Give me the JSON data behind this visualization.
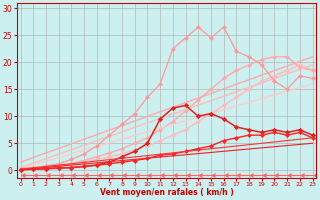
{
  "xlabel": "Vent moyen/en rafales ( km/h )",
  "bg_color": "#ccefef",
  "grid_color": "#aaaaaa",
  "x_ticks": [
    0,
    1,
    2,
    3,
    4,
    5,
    6,
    7,
    8,
    9,
    10,
    11,
    12,
    13,
    14,
    15,
    16,
    17,
    18,
    19,
    20,
    21,
    22,
    23
  ],
  "y_ticks": [
    0,
    5,
    10,
    15,
    20,
    25,
    30
  ],
  "xlim": [
    -0.3,
    23.3
  ],
  "ylim": [
    -1.5,
    31
  ],
  "lines": [
    {
      "x": [
        0,
        1,
        2,
        3,
        4,
        5,
        6,
        7,
        8,
        9,
        10,
        11,
        12,
        13,
        14,
        15,
        16,
        17,
        18,
        19,
        20,
        21,
        22,
        23
      ],
      "y": [
        0.2,
        0.3,
        0.5,
        0.8,
        1.1,
        1.5,
        2.0,
        2.5,
        3.0,
        3.8,
        4.5,
        5.5,
        6.5,
        7.5,
        9.0,
        10.5,
        12.0,
        13.5,
        15.0,
        16.5,
        17.5,
        18.5,
        19.5,
        18.5
      ],
      "color": "#ffbbbb",
      "lw": 1.0,
      "marker": "D",
      "ms": 2.0,
      "ls": "-"
    },
    {
      "x": [
        0,
        1,
        2,
        3,
        4,
        5,
        6,
        7,
        8,
        9,
        10,
        11,
        12,
        13,
        14,
        15,
        16,
        17,
        18,
        19,
        20,
        21,
        22,
        23
      ],
      "y": [
        0.2,
        0.3,
        0.5,
        0.8,
        1.2,
        1.8,
        2.5,
        3.2,
        4.0,
        5.0,
        6.0,
        7.5,
        9.0,
        11.0,
        13.0,
        15.0,
        17.0,
        18.5,
        19.5,
        20.5,
        21.0,
        21.0,
        19.0,
        18.5
      ],
      "color": "#ffaaaa",
      "lw": 1.0,
      "marker": "D",
      "ms": 2.0,
      "ls": "-"
    },
    {
      "x": [
        0,
        23
      ],
      "y": [
        0.3,
        16.0
      ],
      "color": "#ffcccc",
      "lw": 1.0,
      "marker": null,
      "ms": 0,
      "ls": "-"
    },
    {
      "x": [
        0,
        23
      ],
      "y": [
        0.5,
        19.5
      ],
      "color": "#ffbbbb",
      "lw": 1.0,
      "marker": null,
      "ms": 0,
      "ls": "-"
    },
    {
      "x": [
        0,
        23
      ],
      "y": [
        1.5,
        21.0
      ],
      "color": "#ffaaaa",
      "lw": 1.0,
      "marker": null,
      "ms": 0,
      "ls": "-"
    },
    {
      "x": [
        0,
        1,
        2,
        3,
        4,
        5,
        6,
        7,
        8,
        9,
        10,
        11,
        12,
        13,
        14,
        15,
        16,
        17,
        18,
        19,
        20,
        21,
        22,
        23
      ],
      "y": [
        0.3,
        0.5,
        0.8,
        1.2,
        2.0,
        3.0,
        4.5,
        6.5,
        8.5,
        10.5,
        13.5,
        16.0,
        22.5,
        24.5,
        26.5,
        24.5,
        26.5,
        22.0,
        21.0,
        19.5,
        16.5,
        15.0,
        17.5,
        17.0
      ],
      "color": "#ff9999",
      "lw": 0.9,
      "marker": "D",
      "ms": 2.0,
      "ls": "-"
    },
    {
      "x": [
        0,
        1,
        2,
        3,
        4,
        5,
        6,
        7,
        8,
        9,
        10,
        11,
        12,
        13,
        14,
        15,
        16,
        17,
        18,
        19,
        20,
        21,
        22,
        23
      ],
      "y": [
        0.1,
        0.2,
        0.3,
        0.4,
        0.5,
        0.7,
        1.0,
        1.5,
        2.5,
        3.5,
        5.0,
        9.5,
        11.5,
        12.0,
        10.0,
        10.5,
        9.5,
        8.0,
        7.5,
        7.0,
        7.5,
        7.0,
        7.5,
        6.5
      ],
      "color": "#dd2222",
      "lw": 1.1,
      "marker": "D",
      "ms": 2.2,
      "ls": "-"
    },
    {
      "x": [
        0,
        1,
        2,
        3,
        4,
        5,
        6,
        7,
        8,
        9,
        10,
        11,
        12,
        13,
        14,
        15,
        16,
        17,
        18,
        19,
        20,
        21,
        22,
        23
      ],
      "y": [
        0.1,
        0.2,
        0.3,
        0.4,
        0.5,
        0.7,
        0.9,
        1.2,
        1.5,
        1.8,
        2.2,
        2.8,
        3.0,
        3.5,
        4.0,
        4.5,
        5.5,
        6.0,
        6.5,
        6.5,
        7.0,
        6.5,
        7.0,
        6.0
      ],
      "color": "#ff2222",
      "lw": 1.0,
      "marker": "D",
      "ms": 2.0,
      "ls": "-"
    },
    {
      "x": [
        0,
        23
      ],
      "y": [
        0.2,
        6.0
      ],
      "color": "#ff3333",
      "lw": 0.8,
      "marker": null,
      "ms": 0,
      "ls": "-"
    },
    {
      "x": [
        0,
        23
      ],
      "y": [
        0.1,
        5.0
      ],
      "color": "#ee2222",
      "lw": 0.8,
      "marker": null,
      "ms": 0,
      "ls": "-"
    },
    {
      "x": [
        0,
        1,
        2,
        3,
        4,
        5,
        6,
        7,
        8,
        9,
        10,
        11,
        12,
        13,
        14,
        15,
        16,
        17,
        18,
        19,
        20,
        21,
        22,
        23
      ],
      "y": [
        -0.8,
        -0.8,
        -0.8,
        -0.8,
        -0.8,
        -0.8,
        -0.8,
        -0.8,
        -0.8,
        -0.8,
        -0.8,
        -0.8,
        -0.8,
        -0.8,
        -0.8,
        -0.8,
        -0.8,
        -0.8,
        -0.8,
        -0.8,
        -0.8,
        -0.8,
        -0.8,
        -0.8
      ],
      "color": "#ff6666",
      "lw": 0.8,
      "marker": 4,
      "ms": 3.5,
      "ls": "-"
    }
  ]
}
